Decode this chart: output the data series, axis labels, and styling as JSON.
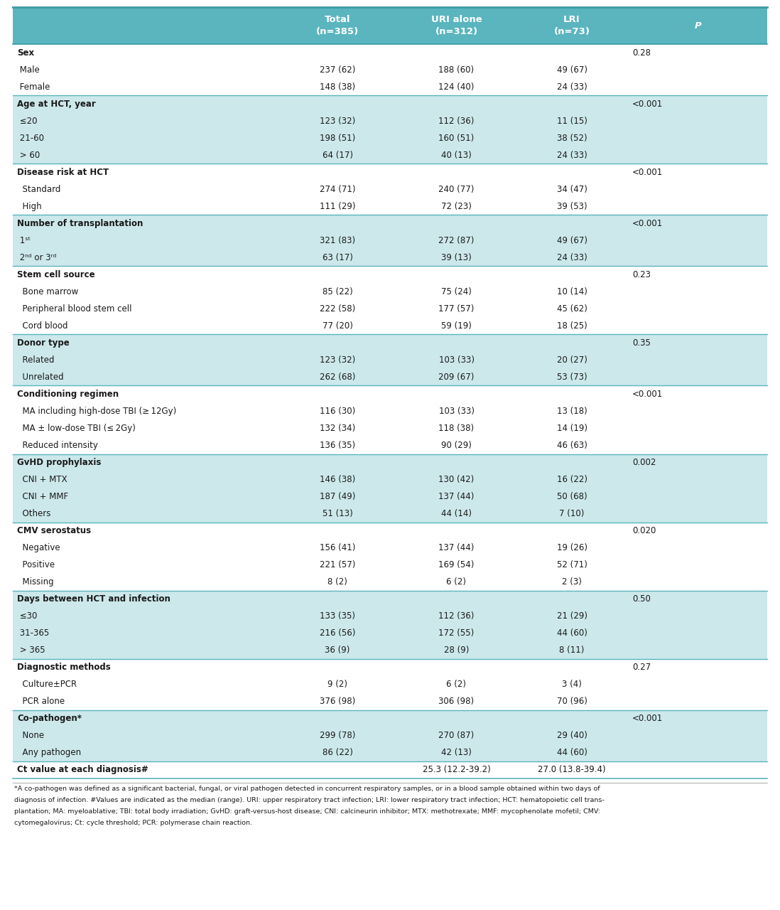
{
  "header_bg": "#5ab5be",
  "row_bg_teal": "#cce8eb",
  "row_bg_white": "#ffffff",
  "text_color": "#1a1a1a",
  "headers": [
    "",
    "Total\n(n=385)",
    "URI alone\n(n=312)",
    "LRI\n(n=73)",
    "P"
  ],
  "rows": [
    {
      "label": "Sex",
      "total": "",
      "uri": "",
      "lri": "",
      "p": "0.28",
      "bg": "white",
      "section": true
    },
    {
      "label": " Male",
      "total": "237 (62)",
      "uri": "188 (60)",
      "lri": "49 (67)",
      "p": "",
      "bg": "white",
      "section": false
    },
    {
      "label": " Female",
      "total": "148 (38)",
      "uri": "124 (40)",
      "lri": "24 (33)",
      "p": "",
      "bg": "white",
      "section": false
    },
    {
      "label": "Age at HCT, year",
      "total": "",
      "uri": "",
      "lri": "",
      "p": "<0.001",
      "bg": "teal",
      "section": true
    },
    {
      "label": " ≤20",
      "total": "123 (32)",
      "uri": "112 (36)",
      "lri": "11 (15)",
      "p": "",
      "bg": "teal",
      "section": false
    },
    {
      "label": " 21-60",
      "total": "198 (51)",
      "uri": "160 (51)",
      "lri": "38 (52)",
      "p": "",
      "bg": "teal",
      "section": false
    },
    {
      "label": " > 60",
      "total": "64 (17)",
      "uri": "40 (13)",
      "lri": "24 (33)",
      "p": "",
      "bg": "teal",
      "section": false
    },
    {
      "label": "Disease risk at HCT",
      "total": "",
      "uri": "",
      "lri": "",
      "p": "<0.001",
      "bg": "white",
      "section": true
    },
    {
      "label": "  Standard",
      "total": "274 (71)",
      "uri": "240 (77)",
      "lri": "34 (47)",
      "p": "",
      "bg": "white",
      "section": false
    },
    {
      "label": "  High",
      "total": "111 (29)",
      "uri": "72 (23)",
      "lri": "39 (53)",
      "p": "",
      "bg": "white",
      "section": false
    },
    {
      "label": "Number of transplantation",
      "total": "",
      "uri": "",
      "lri": "",
      "p": "<0.001",
      "bg": "teal",
      "section": true
    },
    {
      "label": " 1ˢᵗ",
      "total": "321 (83)",
      "uri": "272 (87)",
      "lri": "49 (67)",
      "p": "",
      "bg": "teal",
      "section": false,
      "label_base": " 1",
      "label_super": "st"
    },
    {
      "label": " 2ⁿᵈ or 3ʳᵈ",
      "total": "63 (17)",
      "uri": "39 (13)",
      "lri": "24 (33)",
      "p": "",
      "bg": "teal",
      "section": false,
      "label_base": " 2",
      "label_super": "nd or 3",
      "label_super2": "rd"
    },
    {
      "label": "Stem cell source",
      "total": "",
      "uri": "",
      "lri": "",
      "p": "0.23",
      "bg": "white",
      "section": true
    },
    {
      "label": "  Bone marrow",
      "total": "85 (22)",
      "uri": "75 (24)",
      "lri": "10 (14)",
      "p": "",
      "bg": "white",
      "section": false
    },
    {
      "label": "  Peripheral blood stem cell",
      "total": "222 (58)",
      "uri": "177 (57)",
      "lri": "45 (62)",
      "p": "",
      "bg": "white",
      "section": false
    },
    {
      "label": "  Cord blood",
      "total": "77 (20)",
      "uri": "59 (19)",
      "lri": "18 (25)",
      "p": "",
      "bg": "white",
      "section": false
    },
    {
      "label": "Donor type",
      "total": "",
      "uri": "",
      "lri": "",
      "p": "0.35",
      "bg": "teal",
      "section": true
    },
    {
      "label": "  Related",
      "total": "123 (32)",
      "uri": "103 (33)",
      "lri": "20 (27)",
      "p": "",
      "bg": "teal",
      "section": false
    },
    {
      "label": "  Unrelated",
      "total": "262 (68)",
      "uri": "209 (67)",
      "lri": "53 (73)",
      "p": "",
      "bg": "teal",
      "section": false
    },
    {
      "label": "Conditioning regimen",
      "total": "",
      "uri": "",
      "lri": "",
      "p": "<0.001",
      "bg": "white",
      "section": true
    },
    {
      "label": "  MA including high-dose TBI (≥ 12Gy)",
      "total": "116 (30)",
      "uri": "103 (33)",
      "lri": "13 (18)",
      "p": "",
      "bg": "white",
      "section": false
    },
    {
      "label": "  MA ± low-dose TBI (≤ 2Gy)",
      "total": "132 (34)",
      "uri": "118 (38)",
      "lri": "14 (19)",
      "p": "",
      "bg": "white",
      "section": false
    },
    {
      "label": "  Reduced intensity",
      "total": "136 (35)",
      "uri": "90 (29)",
      "lri": "46 (63)",
      "p": "",
      "bg": "white",
      "section": false
    },
    {
      "label": "GvHD prophylaxis",
      "total": "",
      "uri": "",
      "lri": "",
      "p": "0.002",
      "bg": "teal",
      "section": true
    },
    {
      "label": "  CNI + MTX",
      "total": "146 (38)",
      "uri": "130 (42)",
      "lri": "16 (22)",
      "p": "",
      "bg": "teal",
      "section": false
    },
    {
      "label": "  CNI + MMF",
      "total": "187 (49)",
      "uri": "137 (44)",
      "lri": "50 (68)",
      "p": "",
      "bg": "teal",
      "section": false
    },
    {
      "label": "  Others",
      "total": "51 (13)",
      "uri": "44 (14)",
      "lri": "7 (10)",
      "p": "",
      "bg": "teal",
      "section": false
    },
    {
      "label": "CMV serostatus",
      "total": "",
      "uri": "",
      "lri": "",
      "p": "0.020",
      "bg": "white",
      "section": true
    },
    {
      "label": "  Negative",
      "total": "156 (41)",
      "uri": "137 (44)",
      "lri": "19 (26)",
      "p": "",
      "bg": "white",
      "section": false
    },
    {
      "label": "  Positive",
      "total": "221 (57)",
      "uri": "169 (54)",
      "lri": "52 (71)",
      "p": "",
      "bg": "white",
      "section": false
    },
    {
      "label": "  Missing",
      "total": "8 (2)",
      "uri": "6 (2)",
      "lri": "2 (3)",
      "p": "",
      "bg": "white",
      "section": false
    },
    {
      "label": "Days between HCT and infection",
      "total": "",
      "uri": "",
      "lri": "",
      "p": "0.50",
      "bg": "teal",
      "section": true
    },
    {
      "label": " ≤30",
      "total": "133 (35)",
      "uri": "112 (36)",
      "lri": "21 (29)",
      "p": "",
      "bg": "teal",
      "section": false
    },
    {
      "label": " 31-365",
      "total": "216 (56)",
      "uri": "172 (55)",
      "lri": "44 (60)",
      "p": "",
      "bg": "teal",
      "section": false
    },
    {
      "label": " > 365",
      "total": "36 (9)",
      "uri": "28 (9)",
      "lri": "8 (11)",
      "p": "",
      "bg": "teal",
      "section": false
    },
    {
      "label": "Diagnostic methods",
      "total": "",
      "uri": "",
      "lri": "",
      "p": "0.27",
      "bg": "white",
      "section": true
    },
    {
      "label": "  Culture±PCR",
      "total": "9 (2)",
      "uri": "6 (2)",
      "lri": "3 (4)",
      "p": "",
      "bg": "white",
      "section": false
    },
    {
      "label": "  PCR alone",
      "total": "376 (98)",
      "uri": "306 (98)",
      "lri": "70 (96)",
      "p": "",
      "bg": "white",
      "section": false
    },
    {
      "label": "Co-pathogen*",
      "total": "",
      "uri": "",
      "lri": "",
      "p": "<0.001",
      "bg": "teal",
      "section": true
    },
    {
      "label": "  None",
      "total": "299 (78)",
      "uri": "270 (87)",
      "lri": "29 (40)",
      "p": "",
      "bg": "teal",
      "section": false
    },
    {
      "label": "  Any pathogen",
      "total": "86 (22)",
      "uri": "42 (13)",
      "lri": "44 (60)",
      "p": "",
      "bg": "teal",
      "section": false
    },
    {
      "label": "Ct value at each diagnosis#",
      "total": "",
      "uri": "25.3 (12.2-39.2)",
      "lri": "27.0 (13.8-39.4)",
      "p": "",
      "bg": "white",
      "section": true
    }
  ],
  "footnotes": [
    "*A co-pathogen was defined as a significant bacterial, fungal, or viral pathogen detected in concurrent respiratory samples, or in a blood sample obtained within two days of",
    "diagnosis of infection. #Values are indicated as the median (range). URI: upper respiratory tract infection; LRI: lower respiratory tract infection; HCT: hematopoietic cell trans-",
    "plantation; MA: myeloablative; TBI: total body irradiation; GvHD: graft-versus-host disease; CNI: calcineurin inhibitor; MTX: methotrexate; MMF: mycophenolate mofetil; CMV:",
    "cytomegalovirus; Ct: cycle threshold; PCR: polymerase chain reaction."
  ]
}
